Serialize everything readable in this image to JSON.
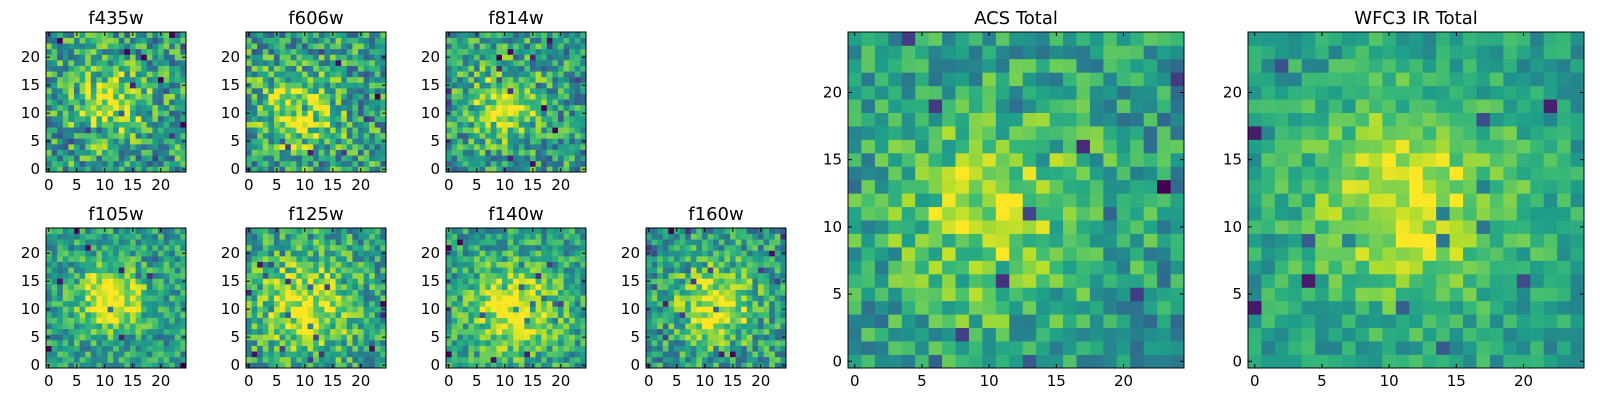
{
  "chart_data": [
    {
      "type": "heatmap",
      "title": "f435w",
      "xlim": [
        -0.5,
        24.5
      ],
      "ylim": [
        -0.5,
        24.5
      ],
      "xticks": [
        0,
        5,
        10,
        15,
        20
      ],
      "yticks": [
        0,
        5,
        10,
        15,
        20
      ],
      "grid": false,
      "colormap": "viridis",
      "value_range": [
        0,
        1
      ],
      "source_center": [
        11,
        11.5
      ],
      "source_radius": 4.5,
      "source_strength": 0.4,
      "noise": 0.3,
      "seed": 11
    },
    {
      "type": "heatmap",
      "title": "f606w",
      "xlim": [
        -0.5,
        24.5
      ],
      "ylim": [
        -0.5,
        24.5
      ],
      "xticks": [
        0,
        5,
        10,
        15,
        20
      ],
      "yticks": [
        0,
        5,
        10,
        15,
        20
      ],
      "grid": false,
      "colormap": "viridis",
      "value_range": [
        0,
        1
      ],
      "source_center": [
        9,
        10
      ],
      "source_radius": 5,
      "source_strength": 0.35,
      "noise": 0.3,
      "seed": 23
    },
    {
      "type": "heatmap",
      "title": "f814w",
      "xlim": [
        -0.5,
        24.5
      ],
      "ylim": [
        -0.5,
        24.5
      ],
      "xticks": [
        0,
        5,
        10,
        15,
        20
      ],
      "yticks": [
        0,
        5,
        10,
        15,
        20
      ],
      "grid": false,
      "colormap": "viridis",
      "value_range": [
        0,
        1
      ],
      "source_center": [
        10,
        11.5
      ],
      "source_radius": 4,
      "source_strength": 0.4,
      "noise": 0.28,
      "seed": 37
    },
    {
      "type": "heatmap",
      "title": "f105w",
      "xlim": [
        -0.5,
        24.5
      ],
      "ylim": [
        -0.5,
        24.5
      ],
      "xticks": [
        0,
        5,
        10,
        15,
        20
      ],
      "yticks": [
        0,
        5,
        10,
        15,
        20
      ],
      "grid": false,
      "colormap": "viridis",
      "value_range": [
        0,
        1
      ],
      "source_center": [
        11,
        12
      ],
      "source_radius": 4,
      "source_strength": 0.5,
      "noise": 0.22,
      "seed": 41
    },
    {
      "type": "heatmap",
      "title": "f125w",
      "xlim": [
        -0.5,
        24.5
      ],
      "ylim": [
        -0.5,
        24.5
      ],
      "xticks": [
        0,
        5,
        10,
        15,
        20
      ],
      "yticks": [
        0,
        5,
        10,
        15,
        20
      ],
      "grid": false,
      "colormap": "viridis",
      "value_range": [
        0,
        1
      ],
      "source_center": [
        10,
        11
      ],
      "source_radius": 6,
      "source_strength": 0.4,
      "noise": 0.25,
      "seed": 53
    },
    {
      "type": "heatmap",
      "title": "f140w",
      "xlim": [
        -0.5,
        24.5
      ],
      "ylim": [
        -0.5,
        24.5
      ],
      "xticks": [
        0,
        5,
        10,
        15,
        20
      ],
      "yticks": [
        0,
        5,
        10,
        15,
        20
      ],
      "grid": false,
      "colormap": "viridis",
      "value_range": [
        0,
        1
      ],
      "source_center": [
        12,
        10
      ],
      "source_radius": 5.5,
      "source_strength": 0.45,
      "noise": 0.22,
      "seed": 67
    },
    {
      "type": "heatmap",
      "title": "f160w",
      "xlim": [
        -0.5,
        24.5
      ],
      "ylim": [
        -0.5,
        24.5
      ],
      "xticks": [
        0,
        5,
        10,
        15,
        20
      ],
      "yticks": [
        0,
        5,
        10,
        15,
        20
      ],
      "grid": false,
      "colormap": "viridis",
      "value_range": [
        0,
        1
      ],
      "source_center": [
        12,
        11
      ],
      "source_radius": 4.5,
      "source_strength": 0.45,
      "noise": 0.25,
      "seed": 79
    },
    {
      "type": "heatmap",
      "title": "ACS Total",
      "xlim": [
        -0.5,
        24.5
      ],
      "ylim": [
        -0.5,
        24.5
      ],
      "xticks": [
        0,
        5,
        10,
        15,
        20
      ],
      "yticks": [
        0,
        5,
        10,
        15,
        20
      ],
      "grid": false,
      "colormap": "viridis",
      "value_range": [
        0,
        1
      ],
      "source_center": [
        10,
        11.5
      ],
      "source_radius": 5,
      "source_strength": 0.35,
      "noise": 0.22,
      "seed": 97
    },
    {
      "type": "heatmap",
      "title": "WFC3 IR Total",
      "xlim": [
        -0.5,
        24.5
      ],
      "ylim": [
        -0.5,
        24.5
      ],
      "xticks": [
        0,
        5,
        10,
        15,
        20
      ],
      "yticks": [
        0,
        5,
        10,
        15,
        20
      ],
      "grid": false,
      "colormap": "viridis",
      "value_range": [
        0,
        1
      ],
      "source_center": [
        11.5,
        12
      ],
      "source_radius": 5.5,
      "source_strength": 0.4,
      "noise": 0.15,
      "seed": 113
    }
  ]
}
